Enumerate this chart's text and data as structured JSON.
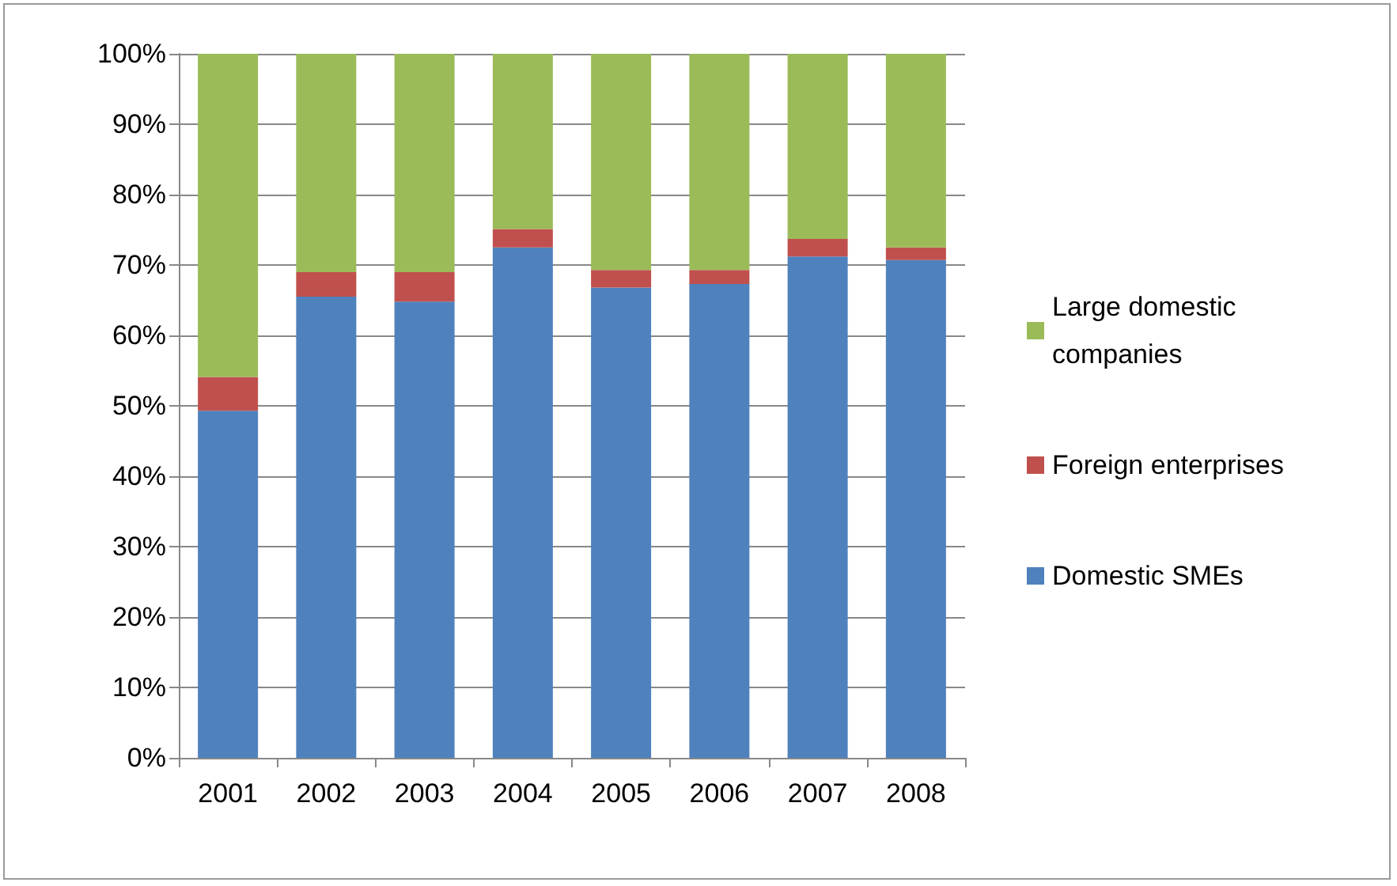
{
  "chart_data": {
    "type": "bar",
    "stacked": true,
    "categories": [
      "2001",
      "2002",
      "2003",
      "2004",
      "2005",
      "2006",
      "2007",
      "2008"
    ],
    "series": [
      {
        "name": "Domestic SMEs",
        "color": "#4f81bd",
        "values": [
          49.3,
          65.5,
          64.8,
          72.5,
          66.8,
          67.3,
          71.2,
          70.7
        ]
      },
      {
        "name": "Foreign enterprises",
        "color": "#c0504d",
        "values": [
          4.8,
          3.5,
          4.2,
          2.6,
          2.5,
          2.0,
          2.5,
          1.8
        ]
      },
      {
        "name": "Large domestic companies",
        "color": "#9bbb59",
        "values": [
          45.9,
          31.0,
          31.0,
          24.9,
          30.7,
          30.7,
          26.3,
          27.5
        ]
      }
    ],
    "ylim": [
      0,
      100
    ],
    "yticks": [
      {
        "value": 0,
        "label": "0%"
      },
      {
        "value": 10,
        "label": "10%"
      },
      {
        "value": 20,
        "label": "20%"
      },
      {
        "value": 30,
        "label": "30%"
      },
      {
        "value": 40,
        "label": "40%"
      },
      {
        "value": 50,
        "label": "50%"
      },
      {
        "value": 60,
        "label": "60%"
      },
      {
        "value": 70,
        "label": "70%"
      },
      {
        "value": 80,
        "label": "80%"
      },
      {
        "value": 90,
        "label": "90%"
      },
      {
        "value": 100,
        "label": "100%"
      }
    ],
    "grid": "y",
    "legend": "right"
  }
}
